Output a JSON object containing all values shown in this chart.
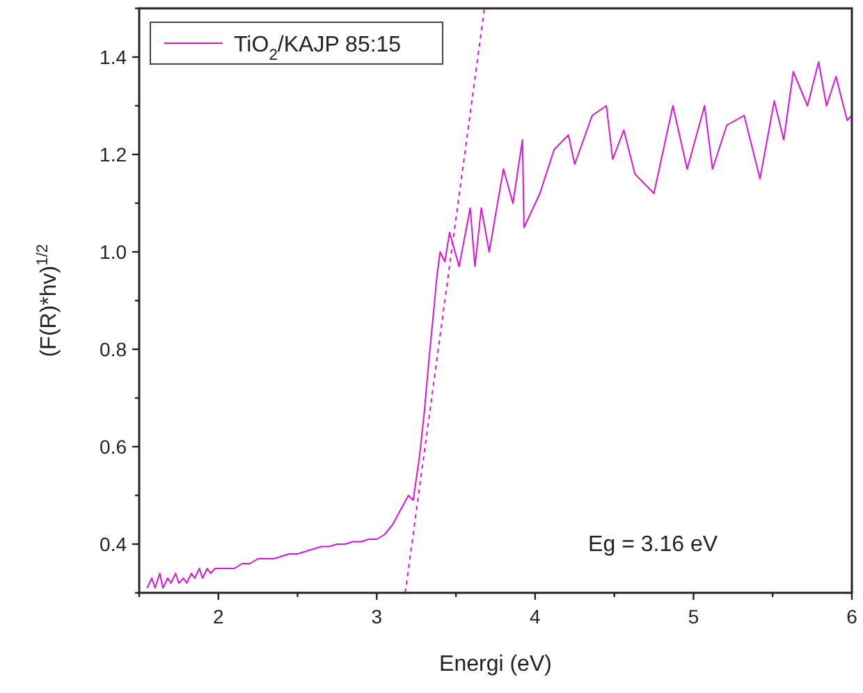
{
  "chart_data": {
    "type": "line",
    "xlabel": "Energi (eV)",
    "ylabel": "(F(R)*hv)$^{1/2}$",
    "xlim": [
      1.5,
      6
    ],
    "ylim": [
      0.3,
      1.5
    ],
    "xticks": [
      {
        "value": 1.5,
        "label": null
      },
      2,
      {
        "value": 2.5,
        "label": null
      },
      3,
      {
        "value": 3.5,
        "label": null
      },
      4,
      {
        "value": 4.5,
        "label": null
      },
      5,
      {
        "value": 5.5,
        "label": null
      },
      6
    ],
    "yticks": [
      {
        "value": 0.3,
        "label": null
      },
      0.4,
      {
        "value": 0.5,
        "label": null
      },
      0.6,
      {
        "value": 0.7,
        "label": null
      },
      0.8,
      {
        "value": 0.9,
        "label": null
      },
      {
        "value": 1,
        "label": "1.0"
      },
      {
        "value": 1.1,
        "label": null
      },
      1.2,
      {
        "value": 1.3,
        "label": null
      },
      1.4,
      {
        "value": 1.5,
        "label": null
      }
    ],
    "grid": false,
    "legend": "top left",
    "marker": "none",
    "annotations": [
      "Eg = 3.16 eV"
    ],
    "series": [
      {
        "name": "TiO$_{2}$/KAJP 85:15",
        "color": "#e010e0",
        "line_style": "solid",
        "x": [
          1.55,
          1.58,
          1.6,
          1.63,
          1.65,
          1.68,
          1.7,
          1.73,
          1.75,
          1.78,
          1.8,
          1.83,
          1.85,
          1.88,
          1.9,
          1.93,
          1.95,
          1.98,
          2.0,
          2.05,
          2.1,
          2.15,
          2.2,
          2.25,
          2.3,
          2.35,
          2.4,
          2.45,
          2.5,
          2.55,
          2.6,
          2.65,
          2.7,
          2.75,
          2.8,
          2.85,
          2.9,
          2.95,
          3.0,
          3.05,
          3.1,
          3.15,
          3.2,
          3.23,
          3.27,
          3.3,
          3.33,
          3.36,
          3.38,
          3.4,
          3.43,
          3.46,
          3.52,
          3.59,
          3.62,
          3.66,
          3.71,
          3.8,
          3.86,
          3.92,
          3.93,
          4.03,
          4.12,
          4.21,
          4.25,
          4.36,
          4.45,
          4.49,
          4.56,
          4.63,
          4.75,
          4.87,
          4.96,
          5.07,
          5.12,
          5.21,
          5.32,
          5.42,
          5.51,
          5.57,
          5.63,
          5.72,
          5.79,
          5.84,
          5.9,
          5.97,
          6.0
        ],
        "values": [
          0.31,
          0.33,
          0.31,
          0.34,
          0.31,
          0.33,
          0.32,
          0.34,
          0.32,
          0.33,
          0.32,
          0.34,
          0.33,
          0.35,
          0.33,
          0.35,
          0.34,
          0.35,
          0.35,
          0.35,
          0.35,
          0.36,
          0.36,
          0.37,
          0.37,
          0.37,
          0.375,
          0.38,
          0.38,
          0.385,
          0.39,
          0.395,
          0.395,
          0.4,
          0.4,
          0.405,
          0.405,
          0.41,
          0.41,
          0.42,
          0.44,
          0.47,
          0.5,
          0.49,
          0.58,
          0.67,
          0.78,
          0.88,
          0.95,
          1.0,
          0.98,
          1.04,
          0.97,
          1.09,
          0.97,
          1.09,
          1.0,
          1.17,
          1.1,
          1.23,
          1.05,
          1.12,
          1.21,
          1.24,
          1.18,
          1.28,
          1.3,
          1.19,
          1.25,
          1.16,
          1.12,
          1.3,
          1.17,
          1.3,
          1.17,
          1.26,
          1.28,
          1.15,
          1.31,
          1.23,
          1.37,
          1.3,
          1.39,
          1.3,
          1.36,
          1.27,
          1.28
        ]
      },
      {
        "type": "line",
        "color": "#e010e0",
        "line_style": "dashed",
        "x": [
          3.18,
          3.68
        ],
        "values": [
          0.3,
          1.5
        ]
      }
    ]
  }
}
